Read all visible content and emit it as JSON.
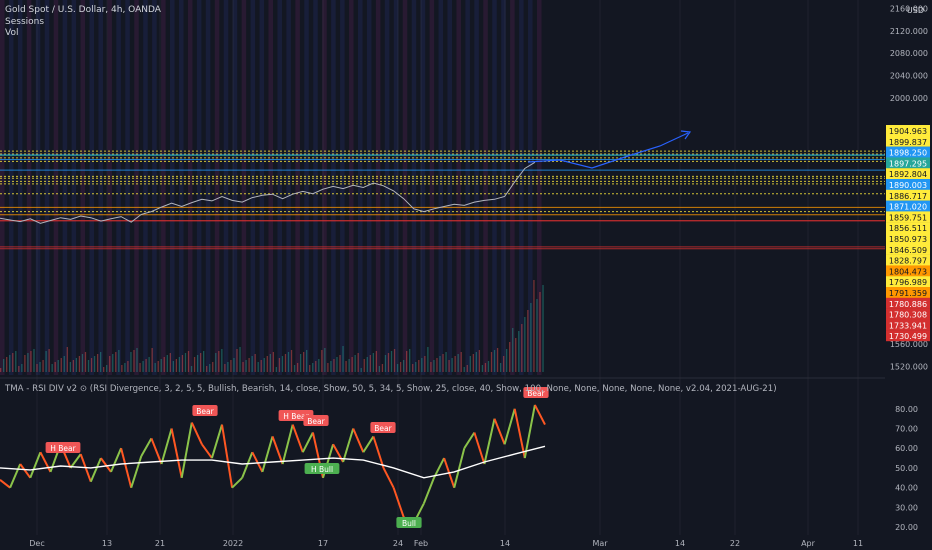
{
  "header": {
    "title": "Gold Spot / U.S. Dollar, 4h, OANDA",
    "sessions": "Sessions",
    "vol": "Vol",
    "currency": "USD"
  },
  "indicator_legend": "TMA - RSI DIV v2 ⊙ (RSI Divergence, 3, 2, 5, 5, Bullish, Bearish, 14, close, Show, 50, 5, 34, 5, Show, 25, close, 40, Show, 100, None, None, None, None, None, v2.04, 2021-AUG-21)",
  "chart_data": [
    {
      "type": "line",
      "panel": "price",
      "ylim": [
        1505,
        2175
      ],
      "y_ticks": [
        1520,
        1560,
        2000,
        2040,
        2080,
        2120,
        2160
      ],
      "y_tick_labels": [
        "1520.000",
        "1560.000",
        "2000.000",
        "2040.000",
        "2080.000",
        "2120.000",
        "2160.000"
      ],
      "x_ticks": [
        "Dec",
        "13",
        "21",
        "2022",
        "17",
        "24",
        "Feb",
        "14",
        "Mar",
        "14",
        "22",
        "Apr",
        "11"
      ],
      "series": [
        {
          "color": "#b2b5be",
          "x": [
            0,
            10,
            20,
            30,
            40,
            50,
            60,
            70,
            80,
            90,
            100,
            110,
            120,
            130,
            140,
            150,
            160,
            170,
            180,
            190,
            200,
            210,
            220,
            230,
            240,
            250,
            260,
            270,
            280,
            290,
            300,
            310,
            320,
            330,
            340,
            350,
            360,
            370,
            380,
            390,
            400,
            410,
            420,
            430,
            440,
            450,
            460,
            470,
            480,
            490,
            500,
            510,
            520,
            530
          ],
          "values": [
            1785,
            1782,
            1779,
            1784,
            1776,
            1781,
            1786,
            1783,
            1789,
            1786,
            1780,
            1784,
            1788,
            1778,
            1792,
            1797,
            1805,
            1812,
            1806,
            1813,
            1819,
            1816,
            1824,
            1817,
            1814,
            1822,
            1826,
            1828,
            1820,
            1828,
            1833,
            1829,
            1837,
            1842,
            1838,
            1844,
            1840,
            1848,
            1843,
            1834,
            1820,
            1802,
            1797,
            1802,
            1806,
            1810,
            1808,
            1814,
            1817,
            1819,
            1824,
            1850,
            1874,
            1885
          ]
        }
      ],
      "horizontal_levels": [
        {
          "label": "1904.963",
          "color": "#ffeb3b"
        },
        {
          "label": "1899.837",
          "color": "#ffeb3b"
        },
        {
          "label": "1898.250",
          "color": "#2196f3"
        },
        {
          "label": "1897.295",
          "color": "#26a69a"
        },
        {
          "label": "1892.804",
          "color": "#ffeb3b"
        },
        {
          "label": "1890.003",
          "color": "#2196f3"
        },
        {
          "label": "1886.717",
          "color": "#ffeb3b"
        },
        {
          "label": "1871.020",
          "color": "#2196f3"
        },
        {
          "label": "1859.751",
          "color": "#ffeb3b"
        },
        {
          "label": "1856.511",
          "color": "#ffeb3b"
        },
        {
          "label": "1850.973",
          "color": "#ffeb3b"
        },
        {
          "label": "1846.509",
          "color": "#ffeb3b"
        },
        {
          "label": "1828.797",
          "color": "#ffeb3b"
        },
        {
          "label": "1804.473",
          "color": "#ff9800"
        },
        {
          "label": "1796.989",
          "color": "#ffeb3b"
        },
        {
          "label": "1791.359",
          "color": "#ff9800"
        },
        {
          "label": "1780.886",
          "color": "#d32f2f"
        },
        {
          "label": "1780.308",
          "color": "#d32f2f"
        },
        {
          "label": "1733.941",
          "color": "#d32f2f"
        },
        {
          "label": "1730.499",
          "color": "#d32f2f"
        }
      ]
    },
    {
      "type": "line",
      "panel": "rsi",
      "ylim": [
        17,
        87
      ],
      "y_ticks": [
        20,
        30,
        40,
        50,
        60,
        70,
        80
      ],
      "y_tick_labels": [
        "20.00",
        "30.00",
        "40.00",
        "50.00",
        "60.00",
        "70.00",
        "80.00"
      ],
      "series": [
        {
          "color": "#8bc34a",
          "x": [
            0,
            10,
            20,
            30,
            40,
            50,
            60,
            70,
            80,
            90,
            100,
            110,
            120,
            130,
            140,
            150,
            160,
            170,
            180,
            190,
            200,
            210,
            220,
            230,
            240,
            250,
            260,
            270,
            280,
            290,
            300,
            310,
            320,
            330,
            340,
            350,
            360,
            370,
            380,
            390,
            400,
            410,
            420,
            430,
            440,
            450,
            460,
            470,
            480,
            490,
            500,
            510,
            520,
            530,
            540
          ],
          "values": [
            44,
            40,
            52,
            45,
            58,
            48,
            62,
            50,
            57,
            43,
            55,
            48,
            60,
            40,
            56,
            65,
            52,
            70,
            45,
            73,
            62,
            55,
            72,
            40,
            45,
            58,
            48,
            66,
            52,
            72,
            58,
            68,
            45,
            62,
            53,
            70,
            58,
            66,
            50,
            40,
            25,
            22,
            32,
            45,
            55,
            40,
            60,
            68,
            52,
            75,
            62,
            80,
            55,
            82,
            72
          ]
        },
        {
          "color": "#ffffff",
          "x": [
            0,
            30,
            60,
            90,
            120,
            150,
            180,
            210,
            240,
            270,
            300,
            330,
            360,
            390,
            420,
            450,
            480,
            510,
            540
          ],
          "values": [
            50,
            49,
            51,
            50,
            52,
            53,
            54,
            54,
            52,
            53,
            54,
            55,
            54,
            50,
            45,
            48,
            53,
            57,
            61
          ]
        }
      ],
      "divergence_labels": [
        "H Bear",
        "Bear",
        "H Bear",
        "Bear",
        "Bear",
        "H Bull",
        "Bull",
        "Bear"
      ]
    }
  ]
}
